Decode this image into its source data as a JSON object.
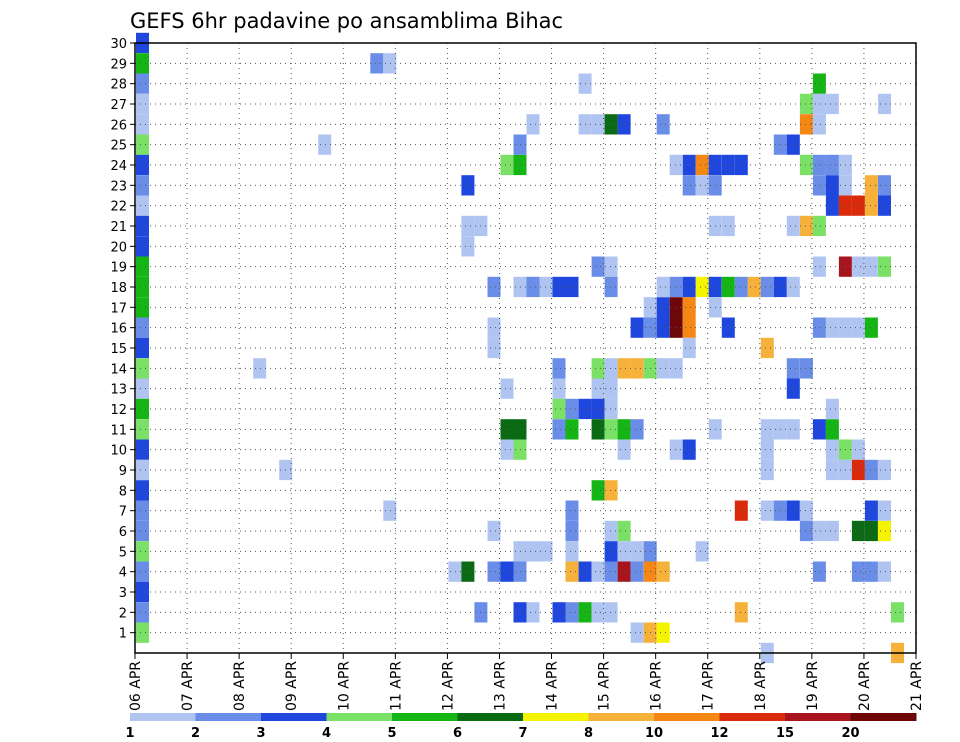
{
  "chart_data": {
    "type": "heatmap",
    "title": "GEFS 6hr padavine po ansamblima Bihac",
    "xlabel": "",
    "ylabel": "",
    "x_tick_labels": [
      "06 APR",
      "07 APR",
      "08 APR",
      "09 APR",
      "10 APR",
      "11 APR",
      "12 APR",
      "13 APR",
      "14 APR",
      "15 APR",
      "16 APR",
      "17 APR",
      "18 APR",
      "19 APR",
      "20 APR",
      "21 APR"
    ],
    "y_tick_labels": [
      "1",
      "2",
      "3",
      "4",
      "5",
      "6",
      "7",
      "8",
      "9",
      "10",
      "11",
      "12",
      "13",
      "14",
      "15",
      "16",
      "17",
      "18",
      "19",
      "20",
      "21",
      "22",
      "23",
      "24",
      "25",
      "26",
      "27",
      "28",
      "29",
      "30"
    ],
    "xlim_steps": [
      0,
      60
    ],
    "ylim": [
      0,
      30
    ],
    "grid": true,
    "legend": {
      "placement": "bottom",
      "labels": [
        "1",
        "2",
        "3",
        "4",
        "5",
        "6",
        "7",
        "8",
        "10",
        "12",
        "15",
        "20"
      ],
      "colors": [
        "#b0c4f2",
        "#6a8ee8",
        "#1f47de",
        "#7ae066",
        "#14b514",
        "#0b6b14",
        "#f5f400",
        "#f5b13a",
        "#f58714",
        "#d92b0c",
        "#a8141e",
        "#6e0808"
      ]
    },
    "cell_index_encoding": "level index: 1=1-2, 2=2-3, 3=3-4, 4=4-5, 5=5-6, 6=6-7, 7=7-8, 8=8-10, 9=10-12, 10=12-15, 11=15-20, 12=>20",
    "cells": [
      [
        0,
        30,
        3
      ],
      [
        0,
        29,
        5
      ],
      [
        0,
        28,
        2
      ],
      [
        0,
        27,
        1
      ],
      [
        0,
        26,
        1
      ],
      [
        0,
        25,
        4
      ],
      [
        0,
        24,
        3
      ],
      [
        0,
        23,
        2
      ],
      [
        0,
        22,
        1
      ],
      [
        0,
        21,
        3
      ],
      [
        0,
        20,
        3
      ],
      [
        0,
        19,
        5
      ],
      [
        0,
        18,
        5
      ],
      [
        0,
        17,
        5
      ],
      [
        0,
        16,
        2
      ],
      [
        0,
        15,
        3
      ],
      [
        0,
        14,
        4
      ],
      [
        0,
        13,
        1
      ],
      [
        0,
        12,
        5
      ],
      [
        0,
        11,
        4
      ],
      [
        0,
        10,
        3
      ],
      [
        0,
        9,
        1
      ],
      [
        0,
        8,
        3
      ],
      [
        0,
        7,
        2
      ],
      [
        0,
        6,
        2
      ],
      [
        0,
        5,
        4
      ],
      [
        0,
        4,
        2
      ],
      [
        0,
        3,
        3
      ],
      [
        0,
        2,
        2
      ],
      [
        0,
        1,
        4
      ],
      [
        18,
        29,
        2
      ],
      [
        19,
        29,
        1
      ],
      [
        9,
        14,
        1
      ],
      [
        11,
        9,
        1
      ],
      [
        14,
        25,
        1
      ],
      [
        19,
        7,
        1
      ],
      [
        25,
        23,
        3
      ],
      [
        25,
        21,
        1
      ],
      [
        26,
        21,
        1
      ],
      [
        25,
        20,
        1
      ],
      [
        24,
        4,
        1
      ],
      [
        25,
        4,
        6
      ],
      [
        26,
        2,
        2
      ],
      [
        27,
        18,
        2
      ],
      [
        27,
        16,
        1
      ],
      [
        27,
        15,
        1
      ],
      [
        27,
        6,
        1
      ],
      [
        27,
        4,
        2
      ],
      [
        28,
        24,
        4
      ],
      [
        29,
        24,
        5
      ],
      [
        29,
        25,
        2
      ],
      [
        30,
        26,
        1
      ],
      [
        28,
        13,
        1
      ],
      [
        28,
        11,
        6
      ],
      [
        29,
        11,
        6
      ],
      [
        28,
        10,
        1
      ],
      [
        29,
        10,
        4
      ],
      [
        28,
        4,
        3
      ],
      [
        29,
        4,
        2
      ],
      [
        29,
        5,
        1
      ],
      [
        30,
        5,
        1
      ],
      [
        31,
        5,
        1
      ],
      [
        29,
        2,
        3
      ],
      [
        30,
        2,
        1
      ],
      [
        29,
        18,
        1
      ],
      [
        30,
        18,
        2
      ],
      [
        31,
        18,
        1
      ],
      [
        32,
        18,
        3
      ],
      [
        33,
        18,
        3
      ],
      [
        32,
        14,
        2
      ],
      [
        32,
        13,
        1
      ],
      [
        32,
        12,
        4
      ],
      [
        33,
        12,
        2
      ],
      [
        32,
        11,
        2
      ],
      [
        33,
        11,
        5
      ],
      [
        33,
        7,
        2
      ],
      [
        33,
        6,
        2
      ],
      [
        33,
        5,
        1
      ],
      [
        32,
        2,
        3
      ],
      [
        33,
        2,
        2
      ],
      [
        34,
        2,
        5
      ],
      [
        35,
        2,
        1
      ],
      [
        36,
        2,
        1
      ],
      [
        33,
        4,
        8
      ],
      [
        34,
        4,
        3
      ],
      [
        35,
        4,
        1
      ],
      [
        36,
        4,
        2
      ],
      [
        37,
        4,
        11
      ],
      [
        38,
        4,
        2
      ],
      [
        39,
        4,
        9
      ],
      [
        35,
        8,
        5
      ],
      [
        36,
        8,
        8
      ],
      [
        35,
        14,
        4
      ],
      [
        36,
        14,
        1
      ],
      [
        37,
        14,
        8
      ],
      [
        38,
        14,
        8
      ],
      [
        39,
        14,
        4
      ],
      [
        40,
        14,
        1
      ],
      [
        41,
        14,
        1
      ],
      [
        35,
        13,
        1
      ],
      [
        36,
        13,
        1
      ],
      [
        34,
        12,
        3
      ],
      [
        35,
        12,
        3
      ],
      [
        36,
        12,
        1
      ],
      [
        35,
        11,
        6
      ],
      [
        36,
        11,
        4
      ],
      [
        37,
        11,
        5
      ],
      [
        38,
        11,
        2
      ],
      [
        37,
        10,
        1
      ],
      [
        35,
        26,
        1
      ],
      [
        36,
        26,
        6
      ],
      [
        37,
        26,
        3
      ],
      [
        34,
        28,
        1
      ],
      [
        34,
        26,
        1
      ],
      [
        35,
        19,
        2
      ],
      [
        36,
        19,
        1
      ],
      [
        36,
        18,
        2
      ],
      [
        36,
        6,
        1
      ],
      [
        37,
        6,
        4
      ],
      [
        36,
        5,
        3
      ],
      [
        37,
        5,
        1
      ],
      [
        38,
        5,
        1
      ],
      [
        39,
        5,
        2
      ],
      [
        38,
        1,
        1
      ],
      [
        39,
        1,
        8
      ],
      [
        40,
        1,
        7
      ],
      [
        38,
        16,
        3
      ],
      [
        39,
        16,
        2
      ],
      [
        40,
        16,
        3
      ],
      [
        39,
        17,
        1
      ],
      [
        40,
        17,
        3
      ],
      [
        40,
        18,
        1
      ],
      [
        41,
        18,
        2
      ],
      [
        41,
        17,
        12
      ],
      [
        42,
        17,
        9
      ],
      [
        41,
        16,
        12
      ],
      [
        42,
        16,
        9
      ],
      [
        42,
        18,
        3
      ],
      [
        43,
        18,
        7
      ],
      [
        44,
        18,
        3
      ],
      [
        45,
        18,
        5
      ],
      [
        46,
        18,
        2
      ],
      [
        47,
        18,
        8
      ],
      [
        48,
        18,
        2
      ],
      [
        49,
        18,
        3
      ],
      [
        50,
        18,
        1
      ],
      [
        42,
        24,
        3
      ],
      [
        43,
        24,
        9
      ],
      [
        44,
        24,
        3
      ],
      [
        45,
        24,
        3
      ],
      [
        46,
        24,
        3
      ],
      [
        41,
        24,
        1
      ],
      [
        42,
        23,
        2
      ],
      [
        43,
        23,
        1
      ],
      [
        44,
        23,
        2
      ],
      [
        40,
        26,
        2
      ],
      [
        44,
        21,
        1
      ],
      [
        45,
        21,
        1
      ],
      [
        42,
        15,
        1
      ],
      [
        45,
        16,
        3
      ],
      [
        44,
        17,
        1
      ],
      [
        48,
        15,
        8
      ],
      [
        41,
        10,
        1
      ],
      [
        42,
        10,
        3
      ],
      [
        44,
        11,
        1
      ],
      [
        43,
        5,
        1
      ],
      [
        40,
        4,
        8
      ],
      [
        46,
        7,
        10
      ],
      [
        48,
        7,
        1
      ],
      [
        49,
        7,
        2
      ],
      [
        50,
        7,
        3
      ],
      [
        51,
        7,
        1
      ],
      [
        46,
        2,
        8
      ],
      [
        48,
        11,
        1
      ],
      [
        49,
        11,
        1
      ],
      [
        50,
        11,
        1
      ],
      [
        48,
        10,
        1
      ],
      [
        48,
        9,
        1
      ],
      [
        48,
        0,
        1
      ],
      [
        49,
        25,
        2
      ],
      [
        50,
        25,
        3
      ],
      [
        50,
        21,
        1
      ],
      [
        50,
        14,
        2
      ],
      [
        51,
        14,
        2
      ],
      [
        50,
        13,
        3
      ],
      [
        52,
        28,
        5
      ],
      [
        52,
        27,
        1
      ],
      [
        53,
        27,
        1
      ],
      [
        51,
        27,
        4
      ],
      [
        51,
        26,
        9
      ],
      [
        52,
        26,
        1
      ],
      [
        51,
        24,
        4
      ],
      [
        52,
        24,
        2
      ],
      [
        53,
        24,
        2
      ],
      [
        52,
        23,
        2
      ],
      [
        53,
        23,
        3
      ],
      [
        54,
        23,
        1
      ],
      [
        53,
        22,
        3
      ],
      [
        54,
        22,
        10
      ],
      [
        55,
        22,
        10
      ],
      [
        56,
        22,
        8
      ],
      [
        57,
        22,
        3
      ],
      [
        56,
        23,
        8
      ],
      [
        57,
        23,
        2
      ],
      [
        54,
        24,
        1
      ],
      [
        51,
        21,
        8
      ],
      [
        52,
        21,
        4
      ],
      [
        52,
        19,
        1
      ],
      [
        54,
        19,
        11
      ],
      [
        55,
        19,
        1
      ],
      [
        56,
        19,
        1
      ],
      [
        57,
        19,
        4
      ],
      [
        57,
        27,
        1
      ],
      [
        52,
        16,
        2
      ],
      [
        53,
        16,
        1
      ],
      [
        54,
        16,
        1
      ],
      [
        55,
        16,
        1
      ],
      [
        56,
        16,
        5
      ],
      [
        52,
        11,
        3
      ],
      [
        53,
        11,
        5
      ],
      [
        53,
        12,
        1
      ],
      [
        53,
        10,
        1
      ],
      [
        54,
        10,
        4
      ],
      [
        55,
        10,
        1
      ],
      [
        53,
        9,
        1
      ],
      [
        54,
        9,
        1
      ],
      [
        55,
        9,
        10
      ],
      [
        56,
        9,
        2
      ],
      [
        57,
        9,
        1
      ],
      [
        51,
        6,
        2
      ],
      [
        52,
        6,
        1
      ],
      [
        53,
        6,
        1
      ],
      [
        55,
        6,
        6
      ],
      [
        56,
        6,
        6
      ],
      [
        57,
        6,
        7
      ],
      [
        56,
        7,
        3
      ],
      [
        57,
        7,
        1
      ],
      [
        52,
        4,
        2
      ],
      [
        55,
        4,
        2
      ],
      [
        56,
        4,
        2
      ],
      [
        57,
        4,
        1
      ],
      [
        58,
        2,
        4
      ],
      [
        58,
        0,
        8
      ]
    ]
  }
}
